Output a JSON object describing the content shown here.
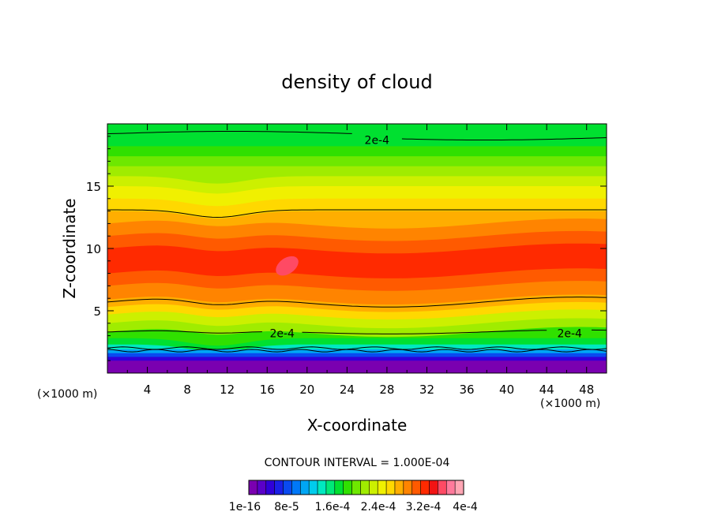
{
  "chart_data": {
    "type": "heatmap",
    "title": "density of cloud",
    "xlabel": "X-coordinate",
    "ylabel": "Z-coordinate",
    "x_unit": "(×1000 m)",
    "x_unit_right": "(×1000 m)",
    "xlim": [
      0,
      50
    ],
    "ylim": [
      0,
      20
    ],
    "x_ticks": [
      4,
      8,
      12,
      16,
      20,
      24,
      28,
      32,
      36,
      40,
      44,
      48
    ],
    "y_ticks": [
      5,
      10,
      15
    ],
    "contour_interval_text": "CONTOUR INTERVAL = 1.000E-04",
    "contour_labels": [
      {
        "text": "2e-4",
        "x": 27,
        "z": 18.7
      },
      {
        "text": "2e-4",
        "x": 17.5,
        "z": 3.2
      },
      {
        "text": "2e-4",
        "x": 46.3,
        "z": 3.2
      }
    ],
    "colorbar": {
      "colors": [
        "#7a00b0",
        "#5a00c8",
        "#3000d8",
        "#1a20e6",
        "#0a4af0",
        "#0078f8",
        "#00a6f4",
        "#00ccec",
        "#00e8c0",
        "#00e878",
        "#00e030",
        "#30e000",
        "#6ee800",
        "#a0ec00",
        "#ccf000",
        "#f0f000",
        "#ffd800",
        "#ffae00",
        "#ff8400",
        "#ff5a00",
        "#ff2a00",
        "#f21414",
        "#ff4a64",
        "#ff7a9c",
        "#ffa6b4"
      ],
      "tick_labels": [
        "1e-16",
        "8e-5",
        "1.6e-4",
        "2.4e-4",
        "3.2e-4",
        "4e-4"
      ]
    },
    "field_bands": [
      {
        "z_top": 1.0,
        "color": "#7a00b0"
      },
      {
        "z_top": 1.3,
        "color": "#3000d8"
      },
      {
        "z_top": 1.6,
        "color": "#0a4af0"
      },
      {
        "z_top": 1.9,
        "color": "#00a6f4"
      },
      {
        "z_top": 2.3,
        "color": "#00e8c0"
      },
      {
        "z_top": 2.8,
        "color": "#00e030"
      },
      {
        "z_top": 3.3,
        "color": "#30e000"
      },
      {
        "z_top": 4.0,
        "color": "#a0ec00"
      },
      {
        "z_top": 4.7,
        "color": "#ccf000"
      },
      {
        "z_top": 5.3,
        "color": "#ffd800"
      },
      {
        "z_top": 5.9,
        "color": "#ffae00"
      },
      {
        "z_top": 7.0,
        "color": "#ff8400"
      },
      {
        "z_top": 8.0,
        "color": "#ff5a00"
      },
      {
        "z_top": 10.0,
        "color": "#ff2a00"
      },
      {
        "z_top": 11.0,
        "color": "#ff5a00"
      },
      {
        "z_top": 12.0,
        "color": "#ff8400"
      },
      {
        "z_top": 13.0,
        "color": "#ffae00"
      },
      {
        "z_top": 14.0,
        "color": "#ffd800"
      },
      {
        "z_top": 15.0,
        "color": "#f0f000"
      },
      {
        "z_top": 15.8,
        "color": "#ccf000"
      },
      {
        "z_top": 16.6,
        "color": "#a0ec00"
      },
      {
        "z_top": 17.4,
        "color": "#6ee800"
      },
      {
        "z_top": 18.2,
        "color": "#30e000"
      },
      {
        "z_top": 19.0,
        "color": "#00e030"
      },
      {
        "z_top": 20.0,
        "color": "#00e030"
      }
    ]
  }
}
